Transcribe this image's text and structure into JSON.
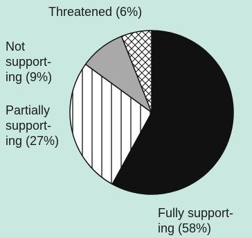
{
  "chart_data": {
    "type": "pie",
    "title": "",
    "start_angle_deg": 0,
    "direction": "clockwise",
    "slices": [
      {
        "label": "Fully support-\ning (58%)",
        "value": 58,
        "fill": "#111111",
        "pattern": "solid"
      },
      {
        "label": "Partially\nsupport-\ning (27%)",
        "value": 27,
        "fill": "#ffffff",
        "pattern": "vertical-lines"
      },
      {
        "label": "Not\nsupport-\ning (9%)",
        "value": 9,
        "fill": "#a9a9a9",
        "pattern": "solid"
      },
      {
        "label": "Threatened (6%)",
        "value": 6,
        "fill": "#ffffff",
        "pattern": "crosshatch"
      }
    ]
  },
  "colors": {
    "background": "#c9e8e0",
    "outline": "#111111"
  }
}
